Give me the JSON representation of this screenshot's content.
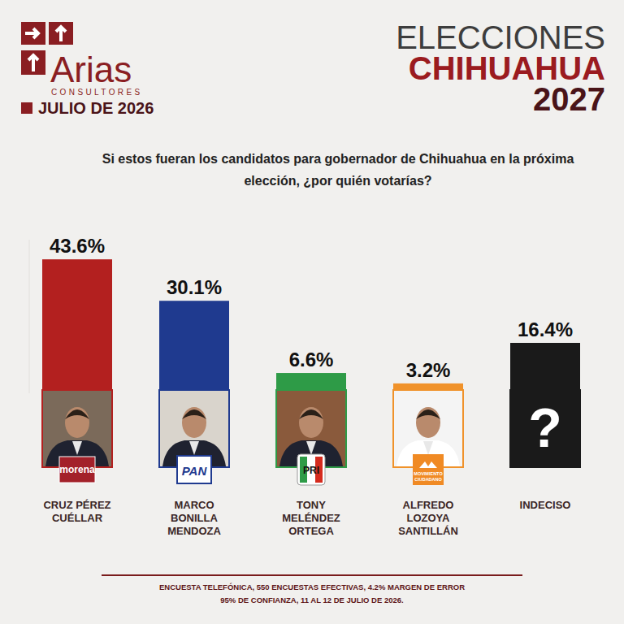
{
  "header": {
    "brand": "Arias",
    "brand_sub": "CONSULTORES",
    "date": "JULIO DE 2026"
  },
  "chart_data": {
    "type": "bar",
    "title": "ELECCIONES CHIHUAHUA 2027",
    "subtitle": "Si estos fueran los candidatos para gobernador de Chihuahua en la próxima elección, ¿por quién votarías?",
    "categories": [
      "CRUZ PÉREZ CUÉLLAR",
      "MARCO BONILLA MENDOZA",
      "TONY MELÉNDEZ ORTEGA",
      "ALFREDO LOZOYA SANTILLÁN",
      "INDECISO"
    ],
    "parties": [
      "morena",
      "PAN",
      "PRI",
      "MOVIMIENTO CIUDADANO",
      null
    ],
    "portrait_texts": [
      null,
      null,
      null,
      null,
      "?"
    ],
    "values": [
      43.6,
      30.1,
      6.6,
      3.2,
      16.4
    ],
    "value_labels": [
      "43.6%",
      "30.1%",
      "6.6%",
      "3.2%",
      "16.4%"
    ],
    "colors": [
      "#b3201f",
      "#1f3a8f",
      "#2e9b47",
      "#f0922a",
      "#1a1a1a"
    ],
    "ylim": [
      0,
      50
    ],
    "data_labels": true,
    "tick_labels": false
  },
  "footer": [
    "ENCUESTA TELEFÓNICA, 550 ENCUESTAS EFECTIVAS, 4.2% MARGEN DE ERROR",
    "95% DE CONFIANZA, 11 AL 12 DE JULIO DE 2026."
  ]
}
